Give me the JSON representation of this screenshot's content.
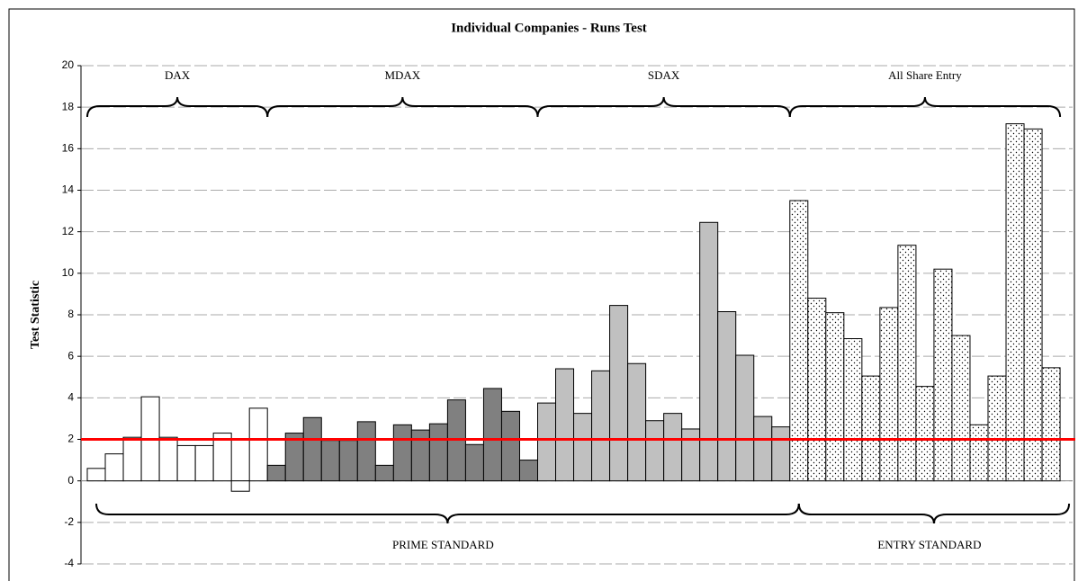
{
  "chart_data": {
    "type": "bar",
    "title": "Individual Companies - Runs Test",
    "ylabel": "Test Statistic",
    "ylim": [
      -4,
      20
    ],
    "yticks": [
      -4,
      -2,
      0,
      2,
      4,
      6,
      8,
      10,
      12,
      14,
      16,
      18,
      20
    ],
    "grid": true,
    "reference_line": {
      "value": 2,
      "color": "#ff0000"
    },
    "groups": [
      {
        "name": "PRIME STANDARD",
        "series": [
          {
            "name": "DAX",
            "color": "#ffffff",
            "values": [
              0.6,
              1.3,
              2.1,
              4.05,
              2.1,
              1.7,
              1.7,
              2.3,
              -0.5,
              3.5
            ]
          },
          {
            "name": "MDAX",
            "color": "#808080",
            "values": [
              0.75,
              2.3,
              3.05,
              1.95,
              1.95,
              2.85,
              0.75,
              2.7,
              2.45,
              2.75,
              3.9,
              1.75,
              4.45,
              3.35,
              1.0
            ]
          },
          {
            "name": "SDAX",
            "color": "#c0c0c0",
            "values": [
              3.75,
              5.4,
              3.25,
              5.3,
              8.45,
              5.65,
              2.9,
              3.25,
              2.5,
              12.45,
              8.15,
              6.05,
              3.1,
              2.6
            ]
          }
        ]
      },
      {
        "name": "ENTRY STANDARD",
        "series": [
          {
            "name": "All Share Entry",
            "color": "#ffffff",
            "pattern": "dots",
            "values": [
              13.5,
              8.8,
              8.1,
              6.85,
              5.05,
              8.35,
              11.35,
              4.55,
              10.2,
              7.0,
              2.7,
              5.05,
              17.2,
              16.95,
              5.45
            ]
          }
        ]
      }
    ]
  }
}
